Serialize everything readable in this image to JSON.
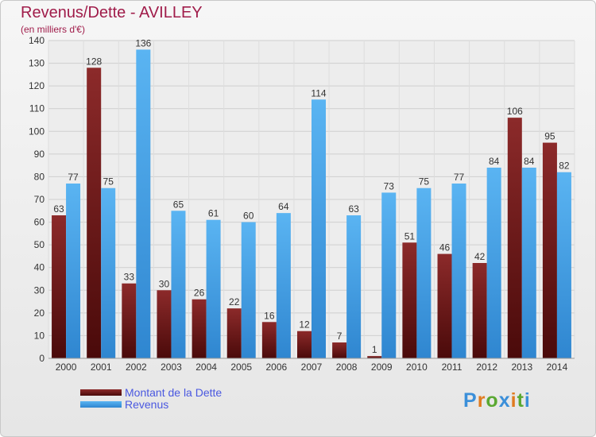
{
  "header": {
    "title": "Revenus/Dette - AVILLEY",
    "subtitle": "(en milliers d'€)"
  },
  "colors": {
    "debt": "#7a1c1c",
    "revenue": "#4aa3e8",
    "grid": "#cfcfcf",
    "axis_text": "#333333"
  },
  "legend": {
    "items": [
      {
        "label": "Montant de la Dette",
        "color": "#7a1c1c"
      },
      {
        "label": "Revenus",
        "color": "#4aa3e8"
      }
    ]
  },
  "logo": {
    "text": "Proxiti"
  },
  "chart_data": {
    "type": "bar",
    "title": "Revenus/Dette - AVILLEY",
    "subtitle": "(en milliers d'€)",
    "xlabel": "",
    "ylabel": "",
    "ylim": [
      0,
      140
    ],
    "yticks": [
      0,
      10,
      20,
      30,
      40,
      50,
      60,
      70,
      80,
      90,
      100,
      110,
      120,
      130,
      140
    ],
    "grid": true,
    "legend_position": "bottom-left",
    "categories": [
      "2000",
      "2001",
      "2002",
      "2003",
      "2004",
      "2005",
      "2006",
      "2007",
      "2008",
      "2009",
      "2010",
      "2011",
      "2012",
      "2013",
      "2014"
    ],
    "series": [
      {
        "name": "Montant de la Dette",
        "values": [
          63,
          128,
          33,
          30,
          26,
          22,
          16,
          12,
          7,
          1,
          51,
          46,
          42,
          106,
          95
        ]
      },
      {
        "name": "Revenus",
        "values": [
          77,
          75,
          136,
          65,
          61,
          60,
          64,
          114,
          63,
          73,
          75,
          77,
          84,
          84,
          82
        ]
      }
    ]
  }
}
